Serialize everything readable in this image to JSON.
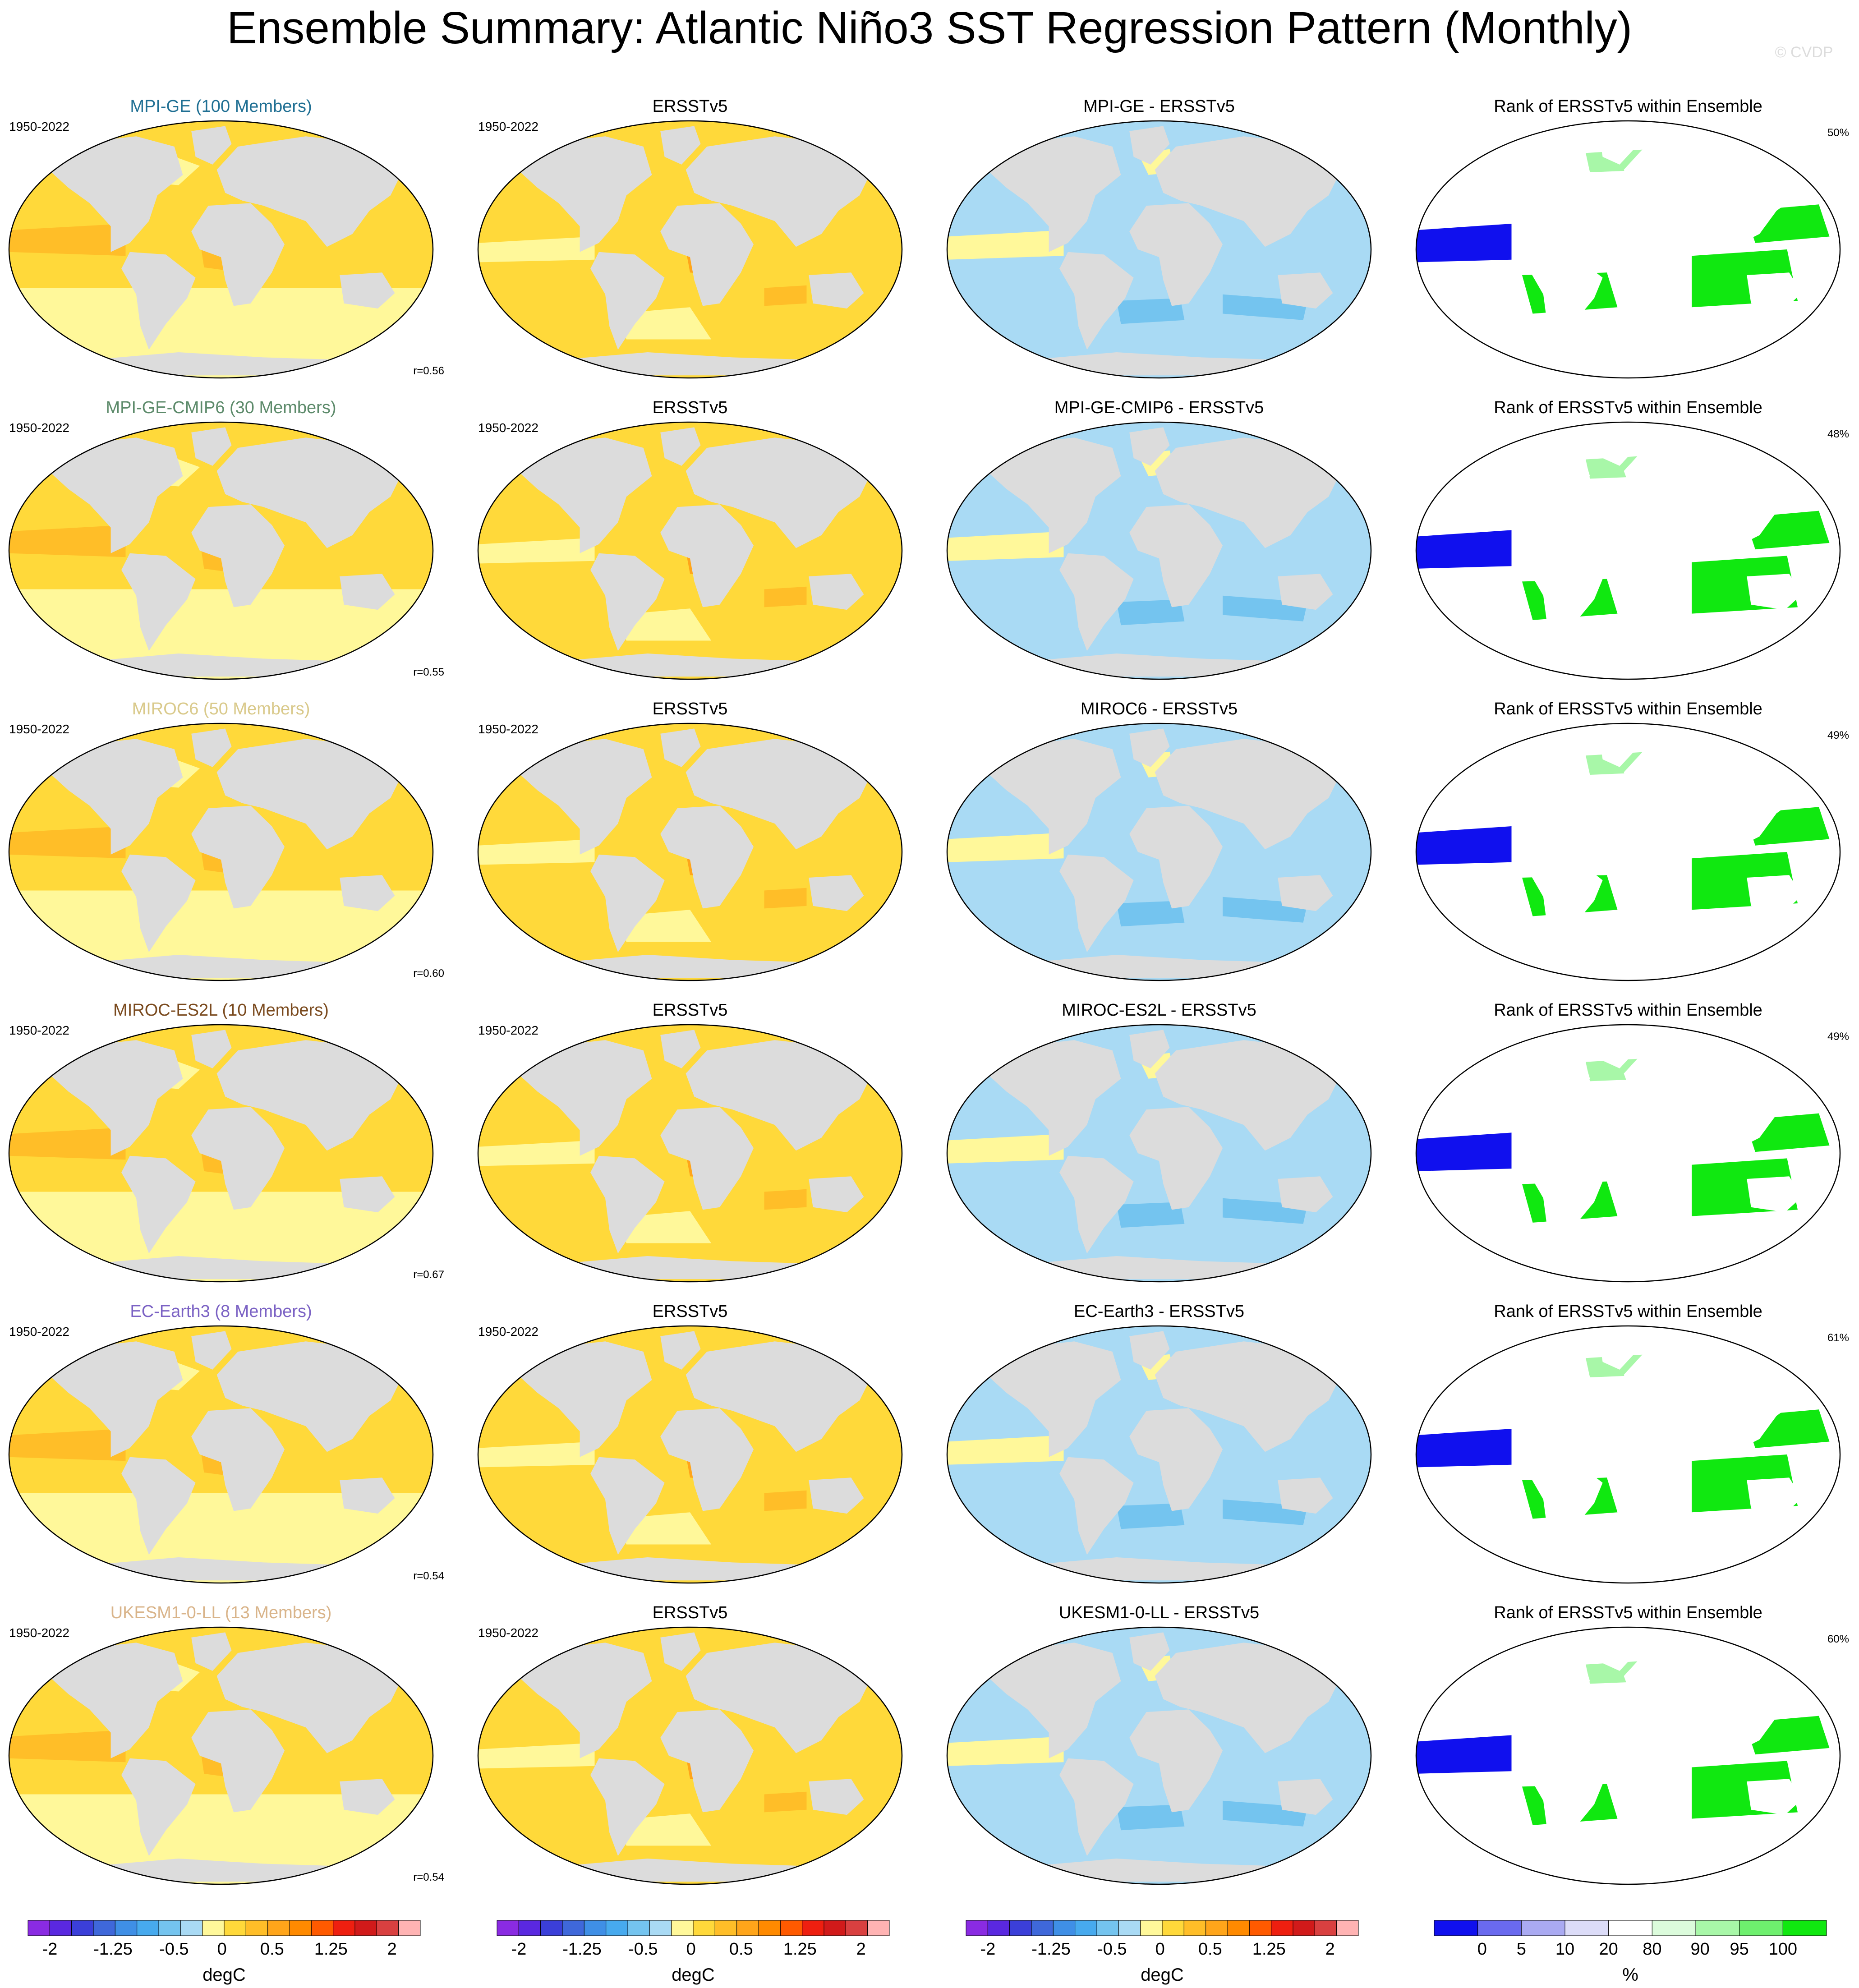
{
  "title": "Ensemble Summary: Atlantic Niño3 SST Regression Pattern (Monthly)",
  "watermark": "© CVDP",
  "obs_name": "ERSSTv5",
  "rank_title": "Rank of ERSSTv5 within Ensemble",
  "rows": [
    {
      "model_title": "MPI-GE (100 Members)",
      "title_color": "#1f6f93",
      "period": "1950-2022",
      "r_label": "r=0.56",
      "diff_title": "MPI-GE - ERSSTv5",
      "rank_pct": "50%"
    },
    {
      "model_title": "MPI-GE-CMIP6 (30 Members)",
      "title_color": "#5c8a6a",
      "period": "1950-2022",
      "r_label": "r=0.55",
      "diff_title": "MPI-GE-CMIP6 - ERSSTv5",
      "rank_pct": "48%"
    },
    {
      "model_title": "MIROC6 (50 Members)",
      "title_color": "#d9c98a",
      "period": "1950-2022",
      "r_label": "r=0.60",
      "diff_title": "MIROC6 - ERSSTv5",
      "rank_pct": "49%"
    },
    {
      "model_title": "MIROC-ES2L (10 Members)",
      "title_color": "#7a4a1e",
      "period": "1950-2022",
      "r_label": "r=0.67",
      "diff_title": "MIROC-ES2L - ERSSTv5",
      "rank_pct": "49%"
    },
    {
      "model_title": "EC-Earth3 (8 Members)",
      "title_color": "#7b62c4",
      "period": "1950-2022",
      "r_label": "r=0.54",
      "diff_title": "EC-Earth3 - ERSSTv5",
      "rank_pct": "61%"
    },
    {
      "model_title": "UKESM1-0-LL (13 Members)",
      "title_color": "#d9b48a",
      "period": "1950-2022",
      "r_label": "r=0.54",
      "diff_title": "UKESM1-0-LL - ERSSTv5",
      "rank_pct": "60%"
    }
  ],
  "colorbars": {
    "degc": {
      "unit": "degC",
      "ticks": [
        "-2",
        "-1.25",
        "-0.5",
        "0",
        "0.5",
        "1.25",
        "2"
      ],
      "colors": [
        "#8a2be2",
        "#5a28e0",
        "#3b3fd9",
        "#3f68da",
        "#3f8fe6",
        "#47aaee",
        "#74c4ef",
        "#a9daf4",
        "#fff89a",
        "#ffd93a",
        "#ffbe28",
        "#ffa51a",
        "#ff8a00",
        "#ff5a00",
        "#ee1f10",
        "#d11a1a",
        "#d94040",
        "#ffb3b3"
      ]
    },
    "rank": {
      "unit": "%",
      "ticks": [
        "0",
        "5",
        "10",
        "20",
        "80",
        "90",
        "95",
        "100"
      ],
      "colors": [
        "#1010ee",
        "#6a6aef",
        "#aaaaf2",
        "#dcdcf8",
        "#ffffff",
        "#dcfcdc",
        "#a8f7a8",
        "#6ef06e",
        "#10e810"
      ]
    }
  },
  "map_colors": {
    "land": "#dcdcdc",
    "coast": "#8a8a8a",
    "pale_yellow": "#fff89a",
    "yellow": "#ffd93a",
    "orange": "#ffbe28",
    "dark_orange": "#ffa51a",
    "pale_blue": "#a9daf4",
    "mid_blue": "#74c4ef",
    "rank_blue": "#1010ee",
    "rank_lightblue": "#aaaaf2",
    "rank_green": "#10e810",
    "rank_lightgreen": "#a8f7a8"
  }
}
